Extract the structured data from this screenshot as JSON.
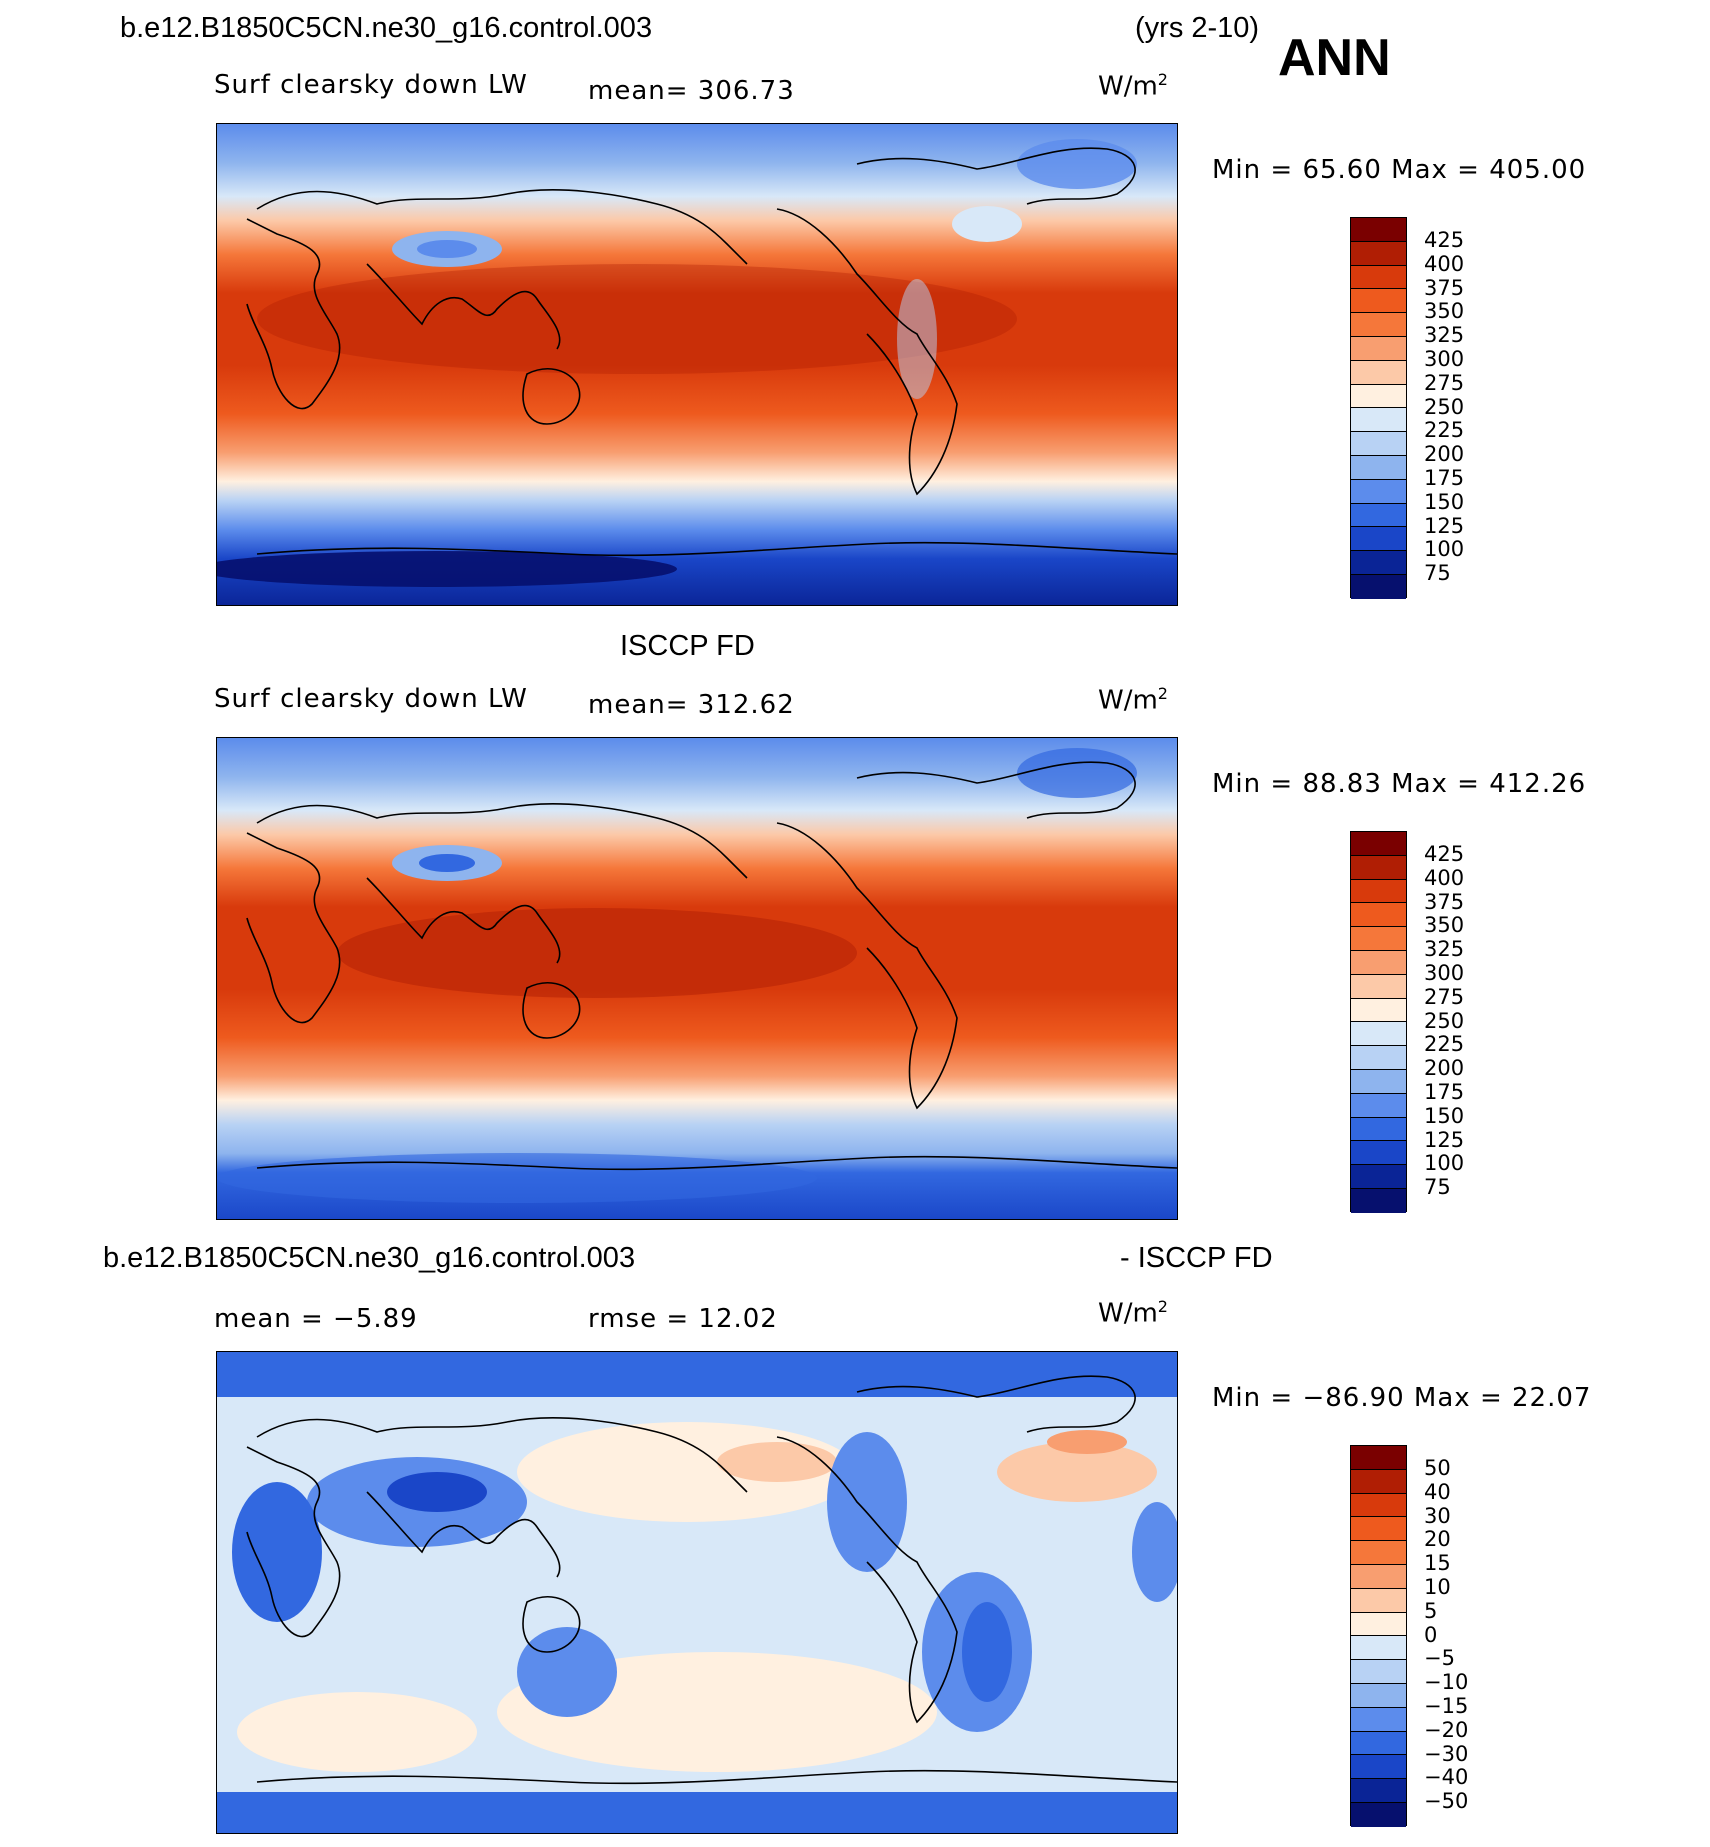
{
  "header": {
    "case_name": "b.e12.B1850C5CN.ne30_g16.control.003",
    "years": "(yrs 2-10)",
    "season": "ANN"
  },
  "panels": [
    {
      "id": "model",
      "variable": "Surf clearsky down LW",
      "stat_text": "mean=  306.73",
      "units_base": "W/m",
      "units_exp": "2",
      "minmax": "Min =   65.60  Max  =  405.00",
      "legend": [
        "425",
        "400",
        "375",
        "350",
        "325",
        "300",
        "275",
        "250",
        "225",
        "200",
        "175",
        "150",
        "125",
        "100",
        "75"
      ]
    },
    {
      "id": "obs",
      "title": "ISCCP FD",
      "variable": "Surf clearsky down LW",
      "stat_text": "mean=  312.62",
      "units_base": "W/m",
      "units_exp": "2",
      "minmax": "Min =   88.83  Max  =  412.26",
      "legend": [
        "425",
        "400",
        "375",
        "350",
        "325",
        "300",
        "275",
        "250",
        "225",
        "200",
        "175",
        "150",
        "125",
        "100",
        "75"
      ]
    },
    {
      "id": "diff",
      "title_left": "b.e12.B1850C5CN.ne30_g16.control.003",
      "title_right": "- ISCCP FD",
      "mean_text": "mean  =   −5.89",
      "rmse_text": "rmse  =   12.02",
      "units_base": "W/m",
      "units_exp": "2",
      "minmax": "Min = −86.90  Max  =   22.07",
      "legend": [
        "50",
        "40",
        "30",
        "20",
        "15",
        "10",
        "5",
        "0",
        "−5",
        "−10",
        "−15",
        "−20",
        "−30",
        "−40",
        "−50"
      ]
    }
  ],
  "colors": {
    "absolute": [
      "#7a0000",
      "#b01e04",
      "#d83a0c",
      "#ee5a1e",
      "#f5773a",
      "#f89e70",
      "#fcc9a8",
      "#fff0e0",
      "#d8e8f8",
      "#b8d2f4",
      "#8eb4ee",
      "#5c8cec",
      "#3268e0",
      "#1a46c8",
      "#0a2496",
      "#06106e"
    ],
    "diff": [
      "#7a0000",
      "#b01e04",
      "#d83a0c",
      "#ee5a1e",
      "#f5773a",
      "#f89e70",
      "#fcc9a8",
      "#fff0e0",
      "#d8e8f8",
      "#b8d2f4",
      "#8eb4ee",
      "#5c8cec",
      "#3268e0",
      "#1a46c8",
      "#0a2496",
      "#06106e"
    ]
  }
}
